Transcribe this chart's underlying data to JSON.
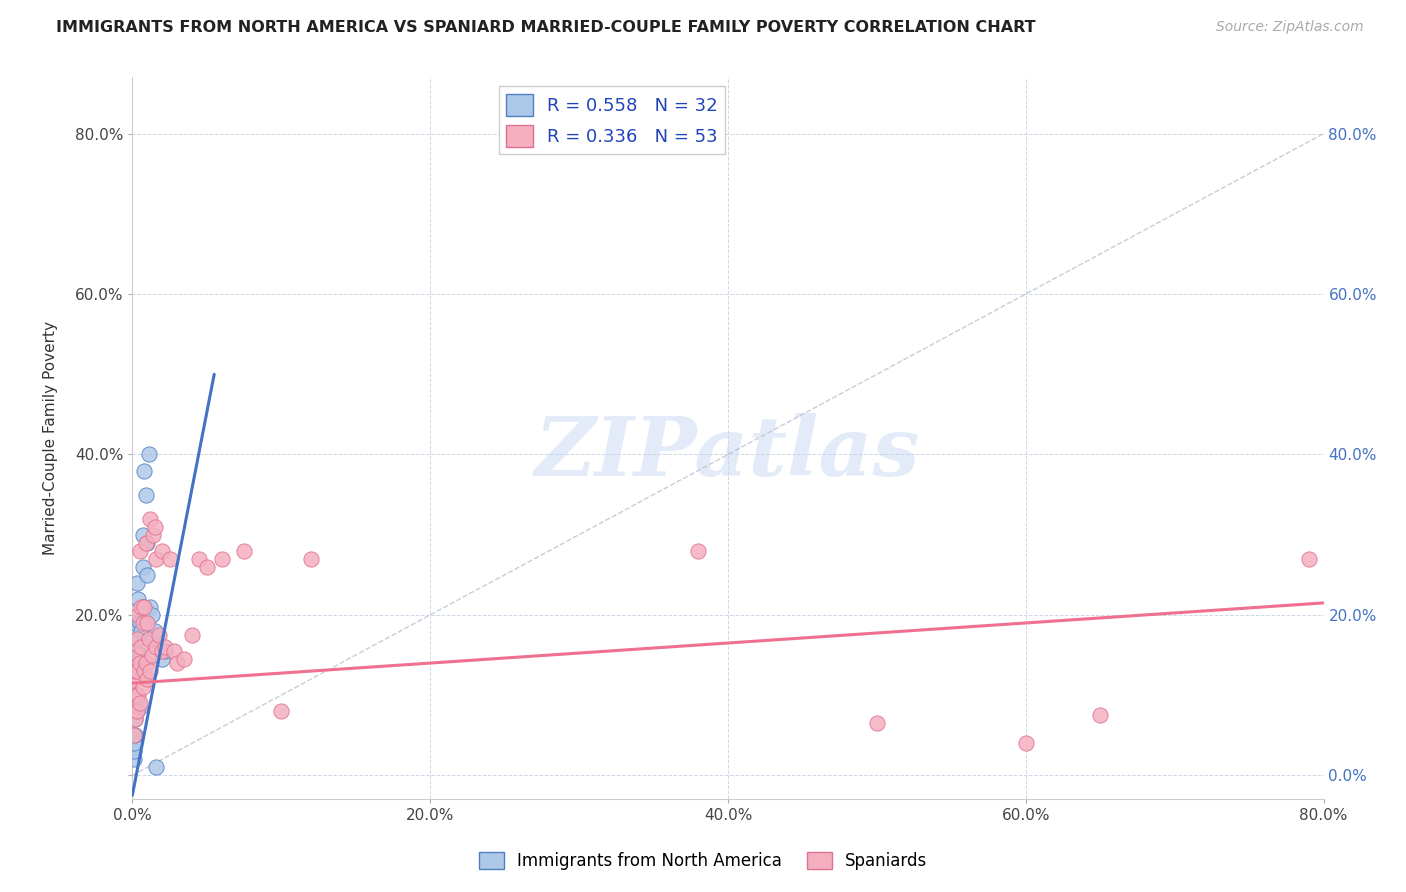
{
  "title": "IMMIGRANTS FROM NORTH AMERICA VS SPANIARD MARRIED-COUPLE FAMILY POVERTY CORRELATION CHART",
  "source": "Source: ZipAtlas.com",
  "ylabel": "Married-Couple Family Poverty",
  "xlim": [
    0.0,
    0.8
  ],
  "ylim": [
    -0.03,
    0.87
  ],
  "xticks": [
    0.0,
    0.2,
    0.4,
    0.6,
    0.8
  ],
  "yticks": [
    0.0,
    0.2,
    0.4,
    0.6,
    0.8
  ],
  "xticklabels": [
    "0.0%",
    "20.0%",
    "40.0%",
    "60.0%",
    "80.0%"
  ],
  "yticklabels_left": [
    "",
    "20.0%",
    "40.0%",
    "60.0%",
    "80.0%"
  ],
  "yticklabels_right": [
    "0.0%",
    "20.0%",
    "40.0%",
    "60.0%",
    "80.0%"
  ],
  "blue_R": 0.558,
  "blue_N": 32,
  "pink_R": 0.336,
  "pink_N": 53,
  "blue_fill_color": "#aec8e8",
  "pink_fill_color": "#f4b0c0",
  "blue_edge_color": "#5080c0",
  "pink_edge_color": "#e07090",
  "blue_line_color": "#4472c4",
  "pink_line_color": "#f07090",
  "legend_label_blue": "Immigrants from North America",
  "legend_label_pink": "Spaniards",
  "watermark": "ZIPatlas",
  "blue_line_x0": 0.0,
  "blue_line_y0": -0.025,
  "blue_line_x1": 0.055,
  "blue_line_y1": 0.5,
  "pink_line_x0": 0.0,
  "pink_line_y0": 0.115,
  "pink_line_x1": 0.8,
  "pink_line_y1": 0.215,
  "blue_scatter_x": [
    0.001,
    0.001,
    0.001,
    0.002,
    0.002,
    0.002,
    0.003,
    0.003,
    0.003,
    0.004,
    0.004,
    0.005,
    0.005,
    0.005,
    0.006,
    0.006,
    0.007,
    0.007,
    0.007,
    0.008,
    0.008,
    0.009,
    0.01,
    0.01,
    0.011,
    0.012,
    0.013,
    0.014,
    0.015,
    0.02,
    0.022,
    0.016
  ],
  "blue_scatter_y": [
    0.02,
    0.03,
    0.04,
    0.05,
    0.07,
    0.19,
    0.08,
    0.1,
    0.24,
    0.17,
    0.22,
    0.085,
    0.15,
    0.19,
    0.15,
    0.18,
    0.21,
    0.26,
    0.3,
    0.21,
    0.38,
    0.35,
    0.25,
    0.29,
    0.4,
    0.21,
    0.2,
    0.17,
    0.18,
    0.145,
    0.155,
    0.01
  ],
  "pink_scatter_x": [
    0.001,
    0.001,
    0.001,
    0.002,
    0.002,
    0.002,
    0.003,
    0.003,
    0.003,
    0.004,
    0.004,
    0.004,
    0.005,
    0.005,
    0.005,
    0.006,
    0.006,
    0.007,
    0.007,
    0.008,
    0.008,
    0.009,
    0.009,
    0.01,
    0.01,
    0.011,
    0.012,
    0.012,
    0.013,
    0.014,
    0.015,
    0.016,
    0.016,
    0.018,
    0.02,
    0.02,
    0.022,
    0.025,
    0.028,
    0.03,
    0.035,
    0.04,
    0.045,
    0.05,
    0.06,
    0.075,
    0.1,
    0.12,
    0.38,
    0.5,
    0.6,
    0.65,
    0.79
  ],
  "pink_scatter_y": [
    0.05,
    0.08,
    0.12,
    0.07,
    0.1,
    0.13,
    0.08,
    0.13,
    0.17,
    0.1,
    0.15,
    0.2,
    0.09,
    0.14,
    0.28,
    0.16,
    0.21,
    0.11,
    0.19,
    0.13,
    0.21,
    0.14,
    0.29,
    0.12,
    0.19,
    0.17,
    0.13,
    0.32,
    0.15,
    0.3,
    0.31,
    0.16,
    0.27,
    0.175,
    0.155,
    0.28,
    0.16,
    0.27,
    0.155,
    0.14,
    0.145,
    0.175,
    0.27,
    0.26,
    0.27,
    0.28,
    0.08,
    0.27,
    0.28,
    0.065,
    0.04,
    0.075,
    0.27
  ]
}
